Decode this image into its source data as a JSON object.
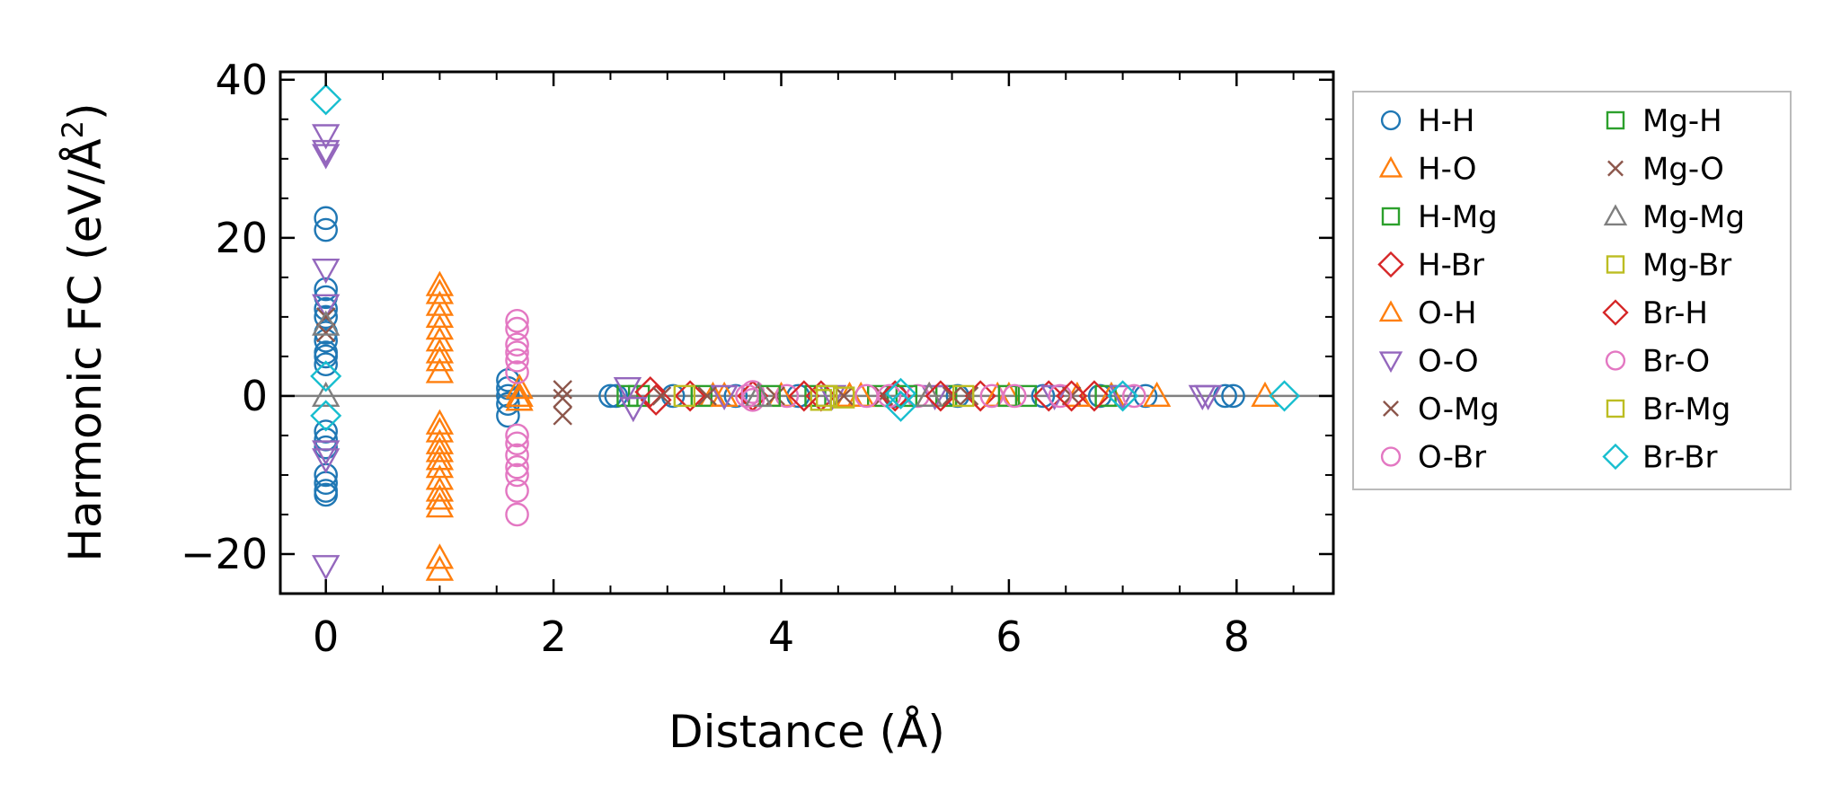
{
  "chart_data": {
    "type": "scatter",
    "xlabel": "Distance (Å)",
    "ylabel": "Harmonic FC (eV/Å²)",
    "ylabel_main": "Harmonic FC (eV/Å",
    "ylabel_sup": "2",
    "ylabel_close": ")",
    "xlim": [
      -0.4,
      8.85
    ],
    "ylim": [
      -25,
      41
    ],
    "xticks": [
      0,
      2,
      4,
      6,
      8
    ],
    "yticks": [
      -20,
      0,
      20,
      40
    ],
    "xtick_labels": [
      "0",
      "2",
      "4",
      "6",
      "8"
    ],
    "ytick_labels": [
      "−20",
      "0",
      "20",
      "40"
    ],
    "zero_line": true,
    "legend_position": "outside-right",
    "series": [
      {
        "name": "H-H",
        "marker": "circle",
        "color": "#1f77b4",
        "filled": false,
        "points": [
          [
            0,
            22.5
          ],
          [
            0,
            21
          ],
          [
            0,
            13.5
          ],
          [
            0,
            12.5
          ],
          [
            0,
            11
          ],
          [
            0,
            10
          ],
          [
            0,
            8
          ],
          [
            0,
            7
          ],
          [
            0,
            5.5
          ],
          [
            0,
            5
          ],
          [
            0,
            4
          ],
          [
            0,
            -4.5
          ],
          [
            0,
            -5.5
          ],
          [
            0,
            -6.5
          ],
          [
            0,
            -10
          ],
          [
            0,
            -11
          ],
          [
            0,
            -12
          ],
          [
            0,
            -12.5
          ],
          [
            1.6,
            2
          ],
          [
            1.6,
            1
          ],
          [
            1.6,
            0
          ],
          [
            1.6,
            -1
          ],
          [
            1.6,
            -2.5
          ],
          [
            2.5,
            0
          ],
          [
            2.55,
            0
          ],
          [
            3.05,
            0
          ],
          [
            3.6,
            0
          ],
          [
            4.15,
            0
          ],
          [
            5.0,
            0
          ],
          [
            5.55,
            0
          ],
          [
            6.3,
            0
          ],
          [
            6.8,
            0
          ],
          [
            7.2,
            0
          ],
          [
            7.9,
            0
          ],
          [
            7.97,
            0
          ]
        ]
      },
      {
        "name": "H-O",
        "marker": "triangle-up",
        "color": "#ff7f0e",
        "filled": false,
        "points": [
          [
            1,
            14
          ],
          [
            1,
            13
          ],
          [
            1,
            11.5
          ],
          [
            1,
            10
          ],
          [
            1,
            8.5
          ],
          [
            1,
            7
          ],
          [
            1,
            5.5
          ],
          [
            1,
            4.5
          ],
          [
            1,
            3
          ],
          [
            1,
            -3.5
          ],
          [
            1,
            -4.5
          ],
          [
            1,
            -6
          ],
          [
            1,
            -7
          ],
          [
            1,
            -8
          ],
          [
            1,
            -9
          ],
          [
            1,
            -10.5
          ],
          [
            1,
            -12
          ],
          [
            1,
            -13
          ],
          [
            1,
            -14
          ],
          [
            1,
            -20.5
          ],
          [
            1,
            -22
          ],
          [
            1.7,
            1
          ],
          [
            1.7,
            0
          ],
          [
            1.7,
            -0.5
          ],
          [
            3.4,
            0
          ],
          [
            4.0,
            0
          ],
          [
            4.6,
            0
          ],
          [
            5.3,
            0
          ],
          [
            6.0,
            0
          ],
          [
            6.9,
            0
          ],
          [
            7.3,
            0
          ],
          [
            8.25,
            0
          ]
        ]
      },
      {
        "name": "H-Mg",
        "marker": "square",
        "color": "#2ca02c",
        "filled": false,
        "points": [
          [
            2.65,
            0
          ],
          [
            2.75,
            0
          ],
          [
            3.3,
            0
          ],
          [
            4.3,
            0
          ],
          [
            4.85,
            0
          ],
          [
            5.45,
            0
          ],
          [
            6.15,
            0
          ],
          [
            6.85,
            0
          ]
        ]
      },
      {
        "name": "H-Br",
        "marker": "diamond",
        "color": "#d62728",
        "filled": false,
        "points": [
          [
            2.85,
            0.5
          ],
          [
            2.9,
            -0.5
          ],
          [
            3.2,
            0
          ],
          [
            3.75,
            0
          ],
          [
            4.35,
            0
          ],
          [
            5.0,
            0
          ],
          [
            5.75,
            0
          ],
          [
            6.35,
            0
          ],
          [
            6.75,
            0
          ]
        ]
      },
      {
        "name": "O-H",
        "marker": "triangle-up",
        "color": "#ff7f0e",
        "filled": false,
        "points": [
          [
            3.5,
            0
          ],
          [
            4.7,
            0
          ],
          [
            5.9,
            0
          ],
          [
            6.6,
            0
          ]
        ]
      },
      {
        "name": "O-O",
        "marker": "triangle-down",
        "color": "#9467bd",
        "filled": false,
        "points": [
          [
            0,
            33
          ],
          [
            0,
            31
          ],
          [
            0,
            30.5
          ],
          [
            0,
            16
          ],
          [
            0,
            11.5
          ],
          [
            0,
            -7
          ],
          [
            0,
            -8
          ],
          [
            0,
            -21.5
          ],
          [
            2.65,
            1
          ],
          [
            2.7,
            -1.5
          ],
          [
            3.5,
            0
          ],
          [
            4.45,
            0
          ],
          [
            5.35,
            0
          ],
          [
            6.4,
            0
          ],
          [
            7.0,
            0
          ],
          [
            7.7,
            0
          ],
          [
            7.75,
            0
          ]
        ]
      },
      {
        "name": "O-Mg",
        "marker": "x",
        "color": "#8c564b",
        "filled": false,
        "points": [
          [
            0,
            8
          ],
          [
            0,
            10
          ],
          [
            2.08,
            0.8
          ],
          [
            2.08,
            -0.3
          ],
          [
            2.08,
            -2.5
          ],
          [
            2.95,
            0
          ],
          [
            3.95,
            0
          ],
          [
            4.9,
            0
          ],
          [
            5.65,
            0
          ],
          [
            6.55,
            0
          ]
        ]
      },
      {
        "name": "O-Br",
        "marker": "circle",
        "color": "#e377c2",
        "filled": false,
        "points": [
          [
            1.68,
            9.5
          ],
          [
            1.68,
            8.5
          ],
          [
            1.68,
            6.5
          ],
          [
            1.68,
            5.5
          ],
          [
            1.68,
            4.5
          ],
          [
            1.68,
            3
          ],
          [
            1.68,
            -5
          ],
          [
            1.68,
            -6
          ],
          [
            1.68,
            -7.5
          ],
          [
            1.68,
            -9
          ],
          [
            1.68,
            -10
          ],
          [
            1.68,
            -12
          ],
          [
            1.68,
            -15
          ],
          [
            3.75,
            0.5
          ],
          [
            3.75,
            -0.5
          ],
          [
            4.05,
            0
          ],
          [
            4.75,
            0
          ],
          [
            5.2,
            0
          ],
          [
            5.85,
            0
          ],
          [
            6.45,
            0
          ],
          [
            7.1,
            0
          ]
        ]
      },
      {
        "name": "Mg-H",
        "marker": "square",
        "color": "#2ca02c",
        "filled": false,
        "points": [
          [
            3.9,
            0
          ],
          [
            5.1,
            0
          ],
          [
            6.0,
            0
          ]
        ]
      },
      {
        "name": "Mg-O",
        "marker": "x",
        "color": "#8c564b",
        "filled": false,
        "points": [
          [
            3.35,
            0
          ],
          [
            4.55,
            0
          ],
          [
            5.5,
            0
          ]
        ]
      },
      {
        "name": "Mg-Mg",
        "marker": "triangle-up",
        "color": "#7f7f7f",
        "filled": false,
        "points": [
          [
            0,
            0
          ],
          [
            0,
            9
          ],
          [
            3.8,
            0
          ],
          [
            5.3,
            0
          ]
        ]
      },
      {
        "name": "Mg-Br",
        "marker": "square",
        "color": "#bcbd22",
        "filled": false,
        "points": [
          [
            4.35,
            -0.5
          ],
          [
            4.55,
            -0.2
          ],
          [
            3.15,
            0
          ]
        ]
      },
      {
        "name": "Br-H",
        "marker": "diamond",
        "color": "#d62728",
        "filled": false,
        "points": [
          [
            4.2,
            0
          ],
          [
            5.4,
            0
          ],
          [
            6.55,
            0
          ]
        ]
      },
      {
        "name": "Br-O",
        "marker": "circle",
        "color": "#e377c2",
        "filled": false,
        "points": [
          [
            3.7,
            0
          ],
          [
            4.95,
            0
          ],
          [
            6.05,
            0
          ]
        ]
      },
      {
        "name": "Br-Mg",
        "marker": "square",
        "color": "#bcbd22",
        "filled": false,
        "points": [
          [
            4.4,
            0
          ],
          [
            5.6,
            0
          ]
        ]
      },
      {
        "name": "Br-Br",
        "marker": "diamond",
        "color": "#17becf",
        "filled": false,
        "points": [
          [
            0,
            37.5
          ],
          [
            0,
            2.5
          ],
          [
            0,
            -2.5
          ],
          [
            5.05,
            0.3
          ],
          [
            5.05,
            -1.3
          ],
          [
            7.0,
            0
          ],
          [
            8.42,
            0
          ]
        ]
      }
    ]
  }
}
